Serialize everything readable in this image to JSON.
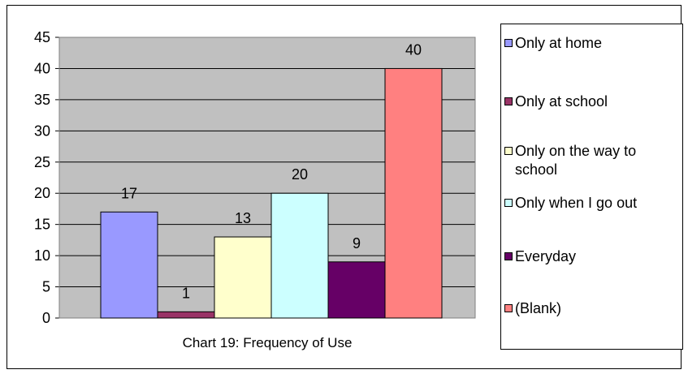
{
  "chart_data": {
    "type": "bar",
    "title": "",
    "xlabel": "Chart 19: Frequency of Use",
    "ylabel": "",
    "categories": [
      "Only at home",
      "Only at school",
      "Only on the way to school",
      "Only when I go out",
      "Everyday",
      "(Blank)"
    ],
    "values": [
      17,
      1,
      13,
      20,
      9,
      40
    ],
    "colors": [
      "#9999ff",
      "#993366",
      "#ffffcc",
      "#ccffff",
      "#660066",
      "#ff8080"
    ],
    "ylim": [
      0,
      45
    ],
    "yticks": [
      0,
      5,
      10,
      15,
      20,
      25,
      30,
      35,
      40,
      45
    ],
    "grid": true,
    "plot_background": "#c0c0c0",
    "legend_position": "right"
  },
  "legend": {
    "items": [
      {
        "label": "Only at home",
        "color": "#9999ff"
      },
      {
        "label": "Only at school",
        "color": "#993366"
      },
      {
        "label": "Only on the way to school",
        "color": "#ffffcc"
      },
      {
        "label": "Only when I go out",
        "color": "#ccffff"
      },
      {
        "label": "Everyday",
        "color": "#660066"
      },
      {
        "label": "(Blank)",
        "color": "#ff8080"
      }
    ]
  }
}
